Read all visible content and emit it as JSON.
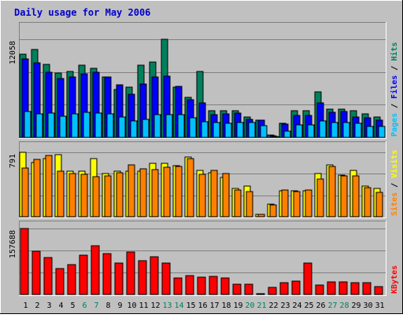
{
  "chart_data": {
    "type": "bar",
    "title": "Daily usage for May 2006",
    "categories": [
      "1",
      "2",
      "3",
      "4",
      "5",
      "6",
      "7",
      "8",
      "9",
      "10",
      "11",
      "12",
      "13",
      "14",
      "15",
      "16",
      "17",
      "18",
      "19",
      "20",
      "21",
      "22",
      "23",
      "24",
      "25",
      "26",
      "27",
      "28",
      "29",
      "30",
      "31"
    ],
    "weekend_days": [
      "6",
      "7",
      "13",
      "14",
      "20",
      "21",
      "27",
      "28"
    ],
    "colors": {
      "title": "#0000cc",
      "background": "#c0c0c0",
      "weekday_label": "#000000",
      "weekend_label": "#00805c",
      "hits": "#00805c",
      "files": "#0000ff",
      "pages": "#00c0ff",
      "visits": "#ffff00",
      "sites": "#ff8000",
      "kbytes": "#ff0000"
    },
    "panels": [
      {
        "name": "hits-files-pages",
        "ymax_label": "12058",
        "ymax": 12058,
        "ylim": [
          0,
          12058
        ],
        "legend": [
          {
            "text": "Pages",
            "color": "#00c0ff"
          },
          {
            "text": "Files",
            "color": "#0000ff"
          },
          {
            "text": "Hits",
            "color": "#00805c"
          }
        ],
        "series": [
          {
            "name": "Hits",
            "color": "#00805c",
            "values": [
              10260,
              10810,
              9000,
              7870,
              8060,
              8890,
              8520,
              7440,
              5870,
              6150,
              8890,
              9250,
              12058,
              6150,
              4880,
              8060,
              3270,
              3270,
              3270,
              2480,
              2160,
              250,
              1730,
              3270,
              3270,
              5640,
              3500,
              3500,
              3270,
              2870,
              2480
            ]
          },
          {
            "name": "Files",
            "color": "#0000ff",
            "values": [
              9690,
              9140,
              8050,
              7210,
              7440,
              7770,
              8030,
              7440,
              6500,
              5330,
              6520,
              7440,
              7530,
              6230,
              4640,
              4290,
              2760,
              2890,
              2990,
              2220,
              2110,
              200,
              1650,
              2710,
              2710,
              4200,
              3130,
              3160,
              2540,
              2450,
              2110
            ]
          },
          {
            "name": "Pages",
            "color": "#00c0ff",
            "values": [
              3140,
              2890,
              2950,
              2630,
              2920,
              3050,
              3030,
              2920,
              2480,
              2040,
              2240,
              2830,
              2750,
              2780,
              2400,
              1950,
              1830,
              1780,
              1860,
              1800,
              1430,
              100,
              780,
              1590,
              1590,
              2050,
              1860,
              1860,
              1720,
              1370,
              1310
            ]
          }
        ]
      },
      {
        "name": "visits-sites",
        "ymax_label": "791",
        "ymax": 791,
        "ylim": [
          0,
          791
        ],
        "legend": [
          {
            "text": "Sites",
            "color": "#ff8000"
          },
          {
            "text": "Visits",
            "color": "#ffff00"
          }
        ],
        "series": [
          {
            "name": "Visits",
            "color": "#ffff00",
            "values": [
              791,
              665,
              715,
              760,
              560,
              560,
              715,
              535,
              560,
              560,
              560,
              660,
              660,
              630,
              735,
              565,
              540,
              480,
              350,
              380,
              30,
              150,
              320,
              320,
              320,
              530,
              640,
              510,
              570,
              380,
              350
            ]
          },
          {
            "name": "Sites",
            "color": "#ff8000",
            "values": [
              600,
              705,
              750,
              560,
              535,
              520,
              495,
              500,
              540,
              640,
              590,
              580,
              610,
              620,
              710,
              520,
              565,
              530,
              330,
              305,
              30,
              145,
              325,
              305,
              325,
              460,
              615,
              505,
              500,
              355,
              300
            ]
          }
        ]
      },
      {
        "name": "kbytes",
        "ymax_label": "157688",
        "ymax": 157688,
        "ylim": [
          0,
          157688
        ],
        "legend": [
          {
            "text": "KBytes",
            "color": "#ff0000"
          }
        ],
        "series": [
          {
            "name": "KBytes",
            "color": "#ff0000",
            "values": [
              157688,
              104000,
              89000,
              61500,
              71500,
              93000,
              117000,
              98500,
              75000,
              100500,
              80000,
              90500,
              75500,
              38500,
              45500,
              40500,
              43500,
              40000,
              24500,
              24000,
              2000,
              17000,
              27500,
              32000,
              76000,
              22500,
              29500,
              29500,
              28000,
              28000,
              18000
            ]
          }
        ]
      }
    ]
  }
}
